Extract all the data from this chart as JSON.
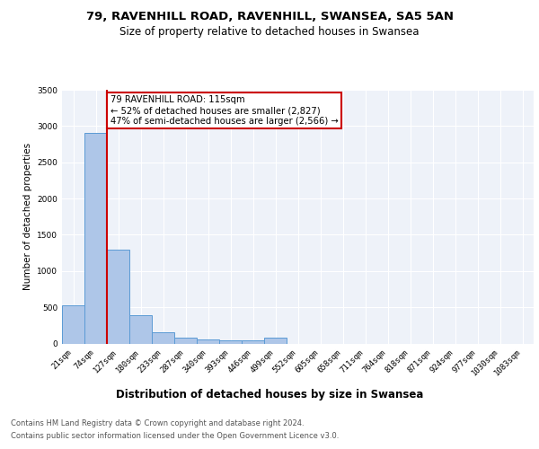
{
  "title_line1": "79, RAVENHILL ROAD, RAVENHILL, SWANSEA, SA5 5AN",
  "title_line2": "Size of property relative to detached houses in Swansea",
  "xlabel": "Distribution of detached houses by size in Swansea",
  "ylabel": "Number of detached properties",
  "categories": [
    "21sqm",
    "74sqm",
    "127sqm",
    "180sqm",
    "233sqm",
    "287sqm",
    "340sqm",
    "393sqm",
    "446sqm",
    "499sqm",
    "552sqm",
    "605sqm",
    "658sqm",
    "711sqm",
    "764sqm",
    "818sqm",
    "871sqm",
    "924sqm",
    "977sqm",
    "1030sqm",
    "1083sqm"
  ],
  "values": [
    530,
    2900,
    1300,
    390,
    160,
    85,
    55,
    45,
    40,
    75,
    0,
    0,
    0,
    0,
    0,
    0,
    0,
    0,
    0,
    0,
    0
  ],
  "bar_color": "#aec6e8",
  "bar_edge_color": "#5b9bd5",
  "annotation_text": "79 RAVENHILL ROAD: 115sqm\n← 52% of detached houses are smaller (2,827)\n47% of semi-detached houses are larger (2,566) →",
  "annotation_box_color": "#ffffff",
  "annotation_box_edge_color": "#cc0000",
  "vline_color": "#cc0000",
  "ylim": [
    0,
    3500
  ],
  "yticks": [
    0,
    500,
    1000,
    1500,
    2000,
    2500,
    3000,
    3500
  ],
  "footnote_line1": "Contains HM Land Registry data © Crown copyright and database right 2024.",
  "footnote_line2": "Contains public sector information licensed under the Open Government Licence v3.0.",
  "background_color": "#eef2f9",
  "grid_color": "#ffffff",
  "title1_fontsize": 9.5,
  "title2_fontsize": 8.5,
  "xlabel_fontsize": 8.5,
  "ylabel_fontsize": 7.5,
  "tick_fontsize": 6.5,
  "footnote_fontsize": 6.0
}
